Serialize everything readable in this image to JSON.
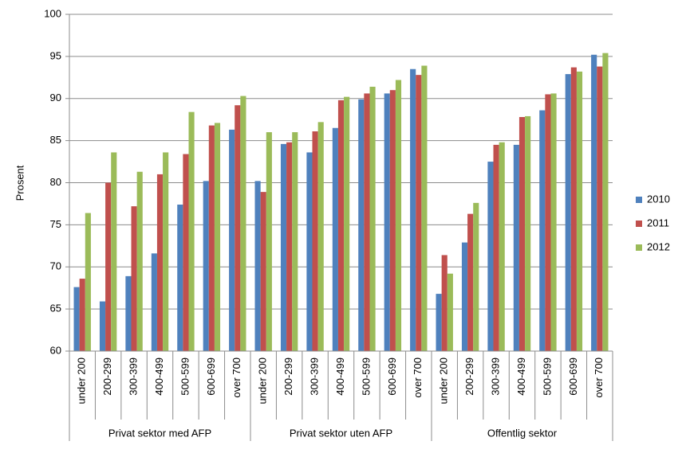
{
  "chart_data": {
    "type": "bar",
    "y_label": "Prosent",
    "groups": [
      "Privat sektor med AFP",
      "Privat sektor uten AFP",
      "Offentlig sektor"
    ],
    "categories": [
      "under 200",
      "200-299",
      "300-399",
      "400-499",
      "500-599",
      "600-699",
      "over 700",
      "under 200",
      "200-299",
      "300-399",
      "400-499",
      "500-599",
      "600-699",
      "over 700",
      "under 200",
      "200-299",
      "300-399",
      "400-499",
      "500-599",
      "600-699",
      "over 700"
    ],
    "series": [
      {
        "name": "2010",
        "color": "#4f81bd",
        "values": [
          67.6,
          65.9,
          68.9,
          71.6,
          77.4,
          80.2,
          86.3,
          80.2,
          84.6,
          83.6,
          86.5,
          89.9,
          90.6,
          93.5,
          66.8,
          72.9,
          82.5,
          84.5,
          88.6,
          92.9,
          95.2
        ]
      },
      {
        "name": "2011",
        "color": "#c0504d",
        "values": [
          68.6,
          80.0,
          77.2,
          81.0,
          83.4,
          86.8,
          89.2,
          78.9,
          84.8,
          86.1,
          89.8,
          90.6,
          91.0,
          92.8,
          71.4,
          76.3,
          84.5,
          87.8,
          90.5,
          93.7,
          93.8
        ]
      },
      {
        "name": "2012",
        "color": "#9bbb59",
        "values": [
          76.4,
          83.6,
          81.3,
          83.6,
          88.4,
          87.1,
          90.3,
          86.0,
          86.0,
          87.2,
          90.2,
          91.4,
          92.2,
          93.9,
          69.2,
          77.6,
          84.8,
          87.9,
          90.6,
          93.2,
          95.4
        ]
      }
    ],
    "ylim": [
      60,
      100
    ],
    "yticks": [
      60,
      65,
      70,
      75,
      80,
      85,
      90,
      95,
      100
    ],
    "grid": true,
    "legend": "right"
  }
}
